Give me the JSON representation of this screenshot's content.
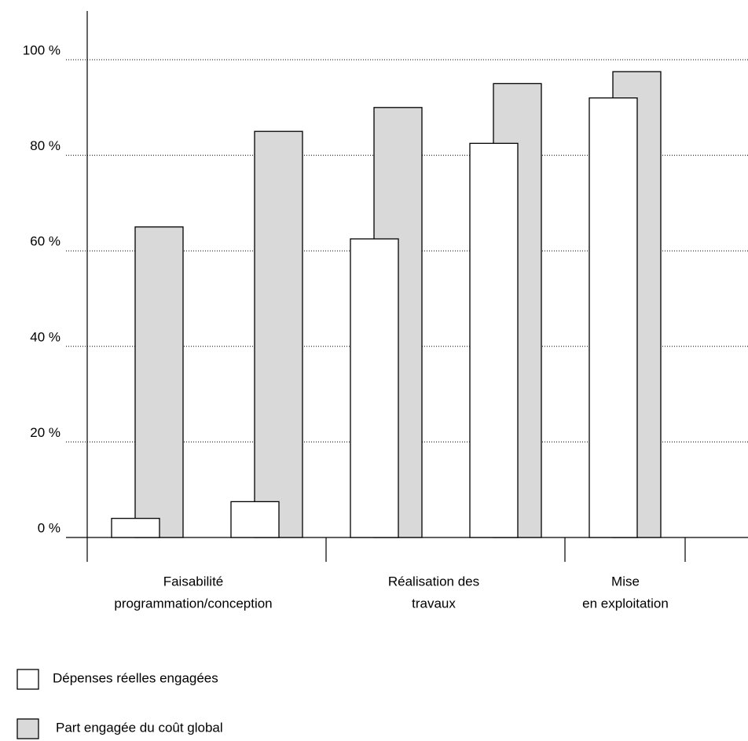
{
  "chart_data": {
    "type": "bar",
    "categories": [
      null,
      null,
      null,
      null,
      null
    ],
    "phases": [
      {
        "lines": [
          "Faisabilité",
          "programmation/conception"
        ]
      },
      {
        "lines": [
          "Réalisation des",
          "travaux"
        ]
      },
      {
        "lines": [
          "Mise",
          "en exploitation"
        ]
      }
    ],
    "series": [
      {
        "name": "Dépenses réelles engagées",
        "color": "#ffffff",
        "values": [
          4,
          7.5,
          62.5,
          82.5,
          92
        ]
      },
      {
        "name": "Part engagée du coût global",
        "color": "#d9d9d9",
        "values": [
          65,
          85,
          90,
          95,
          97.5
        ]
      }
    ],
    "ylim": [
      0,
      100
    ],
    "yticks": [
      {
        "value": 0,
        "label": "0 %"
      },
      {
        "value": 20,
        "label": "20 %"
      },
      {
        "value": 40,
        "label": "40 %"
      },
      {
        "value": 60,
        "label": "60 %"
      },
      {
        "value": 80,
        "label": "80 %"
      },
      {
        "value": 100,
        "label": "100 %"
      }
    ],
    "grid": true
  }
}
